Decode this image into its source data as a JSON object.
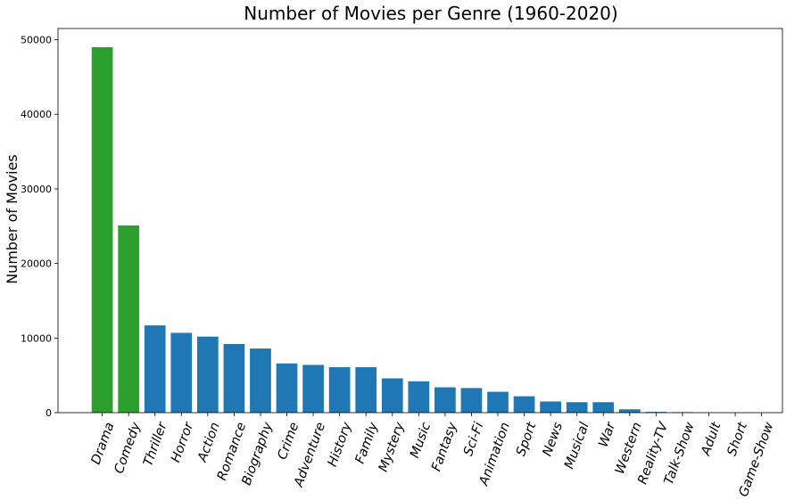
{
  "chart_data": {
    "type": "bar",
    "title": "Number of Movies per Genre (1960-2020)",
    "xlabel": "",
    "ylabel": "Number of Movies",
    "ylim": [
      0,
      51500
    ],
    "yticks": [
      0,
      10000,
      20000,
      30000,
      40000,
      50000
    ],
    "ytick_labels": [
      "0",
      "10000",
      "20000",
      "30000",
      "40000",
      "50000"
    ],
    "grid": false,
    "colors": {
      "highlight": "#2ca02c",
      "default": "#1f77b4"
    },
    "categories": [
      "Drama",
      "Comedy",
      "Thriller",
      "Horror",
      "Action",
      "Romance",
      "Biography",
      "Crime",
      "Adventure",
      "History",
      "Family",
      "Mystery",
      "Music",
      "Fantasy",
      "Sci-Fi",
      "Animation",
      "Sport",
      "News",
      "Musical",
      "War",
      "Western",
      "Reality-TV",
      "Talk-Show",
      "Adult",
      "Short",
      "Game-Show"
    ],
    "values": [
      49000,
      25100,
      11700,
      10700,
      10200,
      9200,
      8600,
      6600,
      6400,
      6100,
      6100,
      4600,
      4200,
      3400,
      3300,
      2800,
      2200,
      1500,
      1400,
      1400,
      450,
      100,
      70,
      20,
      10,
      5
    ],
    "highlighted_categories": [
      "Drama",
      "Comedy"
    ]
  }
}
